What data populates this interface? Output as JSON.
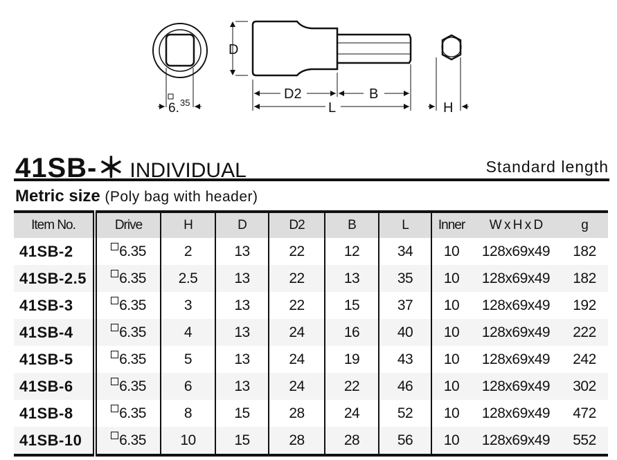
{
  "diagram": {
    "drive_label": "6.",
    "drive_sup": "35",
    "dim_D": "D",
    "dim_D2": "D2",
    "dim_B": "B",
    "dim_L": "L",
    "dim_H": "H"
  },
  "title": {
    "model": "41SB-＊",
    "type": "INDIVIDUAL",
    "length": "Standard length"
  },
  "section": {
    "name": "Metric size",
    "note": "(Poly bag with header)"
  },
  "table": {
    "headers": [
      "Item No.",
      "Drive",
      "H",
      "D",
      "D2",
      "B",
      "L",
      "Inner",
      "W x H x D",
      "g"
    ],
    "rows": [
      [
        "41SB-2",
        "6.35",
        "2",
        "13",
        "22",
        "12",
        "34",
        "10",
        "128x69x49",
        "182"
      ],
      [
        "41SB-2.5",
        "6.35",
        "2.5",
        "13",
        "22",
        "13",
        "35",
        "10",
        "128x69x49",
        "182"
      ],
      [
        "41SB-3",
        "6.35",
        "3",
        "13",
        "22",
        "15",
        "37",
        "10",
        "128x69x49",
        "192"
      ],
      [
        "41SB-4",
        "6.35",
        "4",
        "13",
        "24",
        "16",
        "40",
        "10",
        "128x69x49",
        "222"
      ],
      [
        "41SB-5",
        "6.35",
        "5",
        "13",
        "24",
        "19",
        "43",
        "10",
        "128x69x49",
        "242"
      ],
      [
        "41SB-6",
        "6.35",
        "6",
        "13",
        "24",
        "22",
        "46",
        "10",
        "128x69x49",
        "302"
      ],
      [
        "41SB-8",
        "6.35",
        "8",
        "15",
        "28",
        "24",
        "52",
        "10",
        "128x69x49",
        "472"
      ],
      [
        "41SB-10",
        "6.35",
        "10",
        "15",
        "28",
        "28",
        "56",
        "10",
        "128x69x49",
        "552"
      ]
    ]
  }
}
